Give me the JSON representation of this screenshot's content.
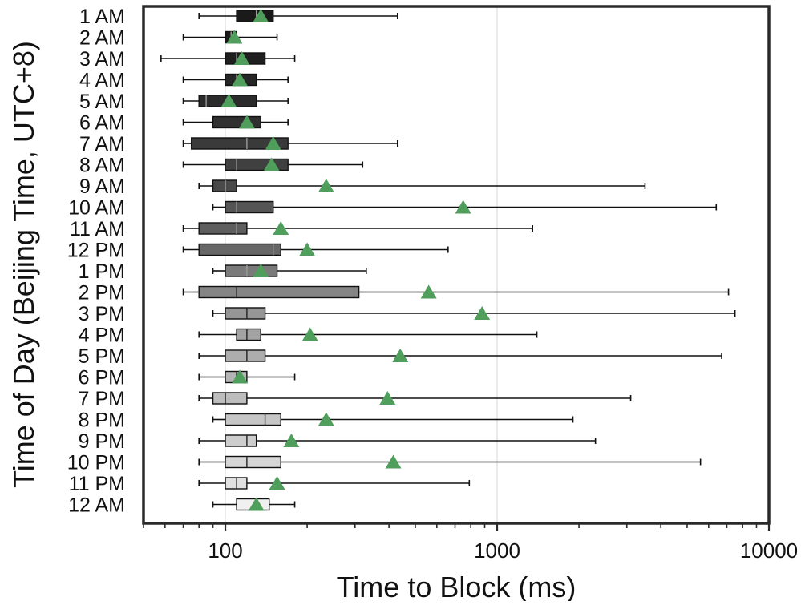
{
  "chart_data": {
    "type": "boxplot",
    "orientation": "horizontal",
    "title": "",
    "xlabel": "Time to Block (ms)",
    "ylabel": "Time of Day (Beijing Time, UTC+8)",
    "xscale": "log",
    "xlim": [
      50,
      10000
    ],
    "x_ticks": [
      100,
      1000,
      10000
    ],
    "x_tick_labels": [
      "100",
      "1000",
      "10000"
    ],
    "grid": "vertical major gridlines at 1000",
    "mean_marker": "green-triangle",
    "categories": [
      "1 AM",
      "2 AM",
      "3 AM",
      "4 AM",
      "5 AM",
      "6 AM",
      "7 AM",
      "8 AM",
      "9 AM",
      "10 AM",
      "11 AM",
      "12 PM",
      "1 PM",
      "2 PM",
      "3 PM",
      "4 PM",
      "5 PM",
      "6 PM",
      "7 PM",
      "8 PM",
      "9 PM",
      "10 PM",
      "11 PM",
      "12 AM"
    ],
    "series": [
      {
        "label": "1 AM",
        "whisker_low": 80,
        "q1": 110,
        "median": 130,
        "q3": 150,
        "whisker_high": 430,
        "mean": 135,
        "color": "#1a1a1a"
      },
      {
        "label": "2 AM",
        "whisker_low": 70,
        "q1": 100,
        "median": 105,
        "q3": 110,
        "whisker_high": 155,
        "mean": 108,
        "color": "#1a1a1a"
      },
      {
        "label": "3 AM",
        "whisker_low": 58,
        "q1": 100,
        "median": 110,
        "q3": 140,
        "whisker_high": 180,
        "mean": 115,
        "color": "#1f1f1f"
      },
      {
        "label": "4 AM",
        "whisker_low": 70,
        "q1": 100,
        "median": 110,
        "q3": 130,
        "whisker_high": 170,
        "mean": 113,
        "color": "#262626"
      },
      {
        "label": "5 AM",
        "whisker_low": 70,
        "q1": 80,
        "median": 85,
        "q3": 130,
        "whisker_high": 170,
        "mean": 103,
        "color": "#2b2b2b"
      },
      {
        "label": "6 AM",
        "whisker_low": 70,
        "q1": 90,
        "median": 120,
        "q3": 135,
        "whisker_high": 170,
        "mean": 120,
        "color": "#303030"
      },
      {
        "label": "7 AM",
        "whisker_low": 70,
        "q1": 75,
        "median": 120,
        "q3": 170,
        "whisker_high": 430,
        "mean": 150,
        "color": "#3a3a3a"
      },
      {
        "label": "8 AM",
        "whisker_low": 70,
        "q1": 100,
        "median": 110,
        "q3": 170,
        "whisker_high": 320,
        "mean": 148,
        "color": "#404040"
      },
      {
        "label": "9 AM",
        "whisker_low": 80,
        "q1": 90,
        "median": 100,
        "q3": 110,
        "whisker_high": 3500,
        "mean": 235,
        "color": "#4a4a4a"
      },
      {
        "label": "10 AM",
        "whisker_low": 90,
        "q1": 100,
        "median": 110,
        "q3": 150,
        "whisker_high": 6400,
        "mean": 750,
        "color": "#555555"
      },
      {
        "label": "11 AM",
        "whisker_low": 70,
        "q1": 80,
        "median": 110,
        "q3": 120,
        "whisker_high": 1350,
        "mean": 160,
        "color": "#5e5e5e"
      },
      {
        "label": "12 PM",
        "whisker_low": 70,
        "q1": 80,
        "median": 150,
        "q3": 160,
        "whisker_high": 660,
        "mean": 200,
        "color": "#676767"
      },
      {
        "label": "1 PM",
        "whisker_low": 90,
        "q1": 100,
        "median": 120,
        "q3": 155,
        "whisker_high": 330,
        "mean": 135,
        "color": "#7a7a7a"
      },
      {
        "label": "2 PM",
        "whisker_low": 70,
        "q1": 80,
        "median": 110,
        "q3": 310,
        "whisker_high": 7100,
        "mean": 560,
        "color": "#858585"
      },
      {
        "label": "3 PM",
        "whisker_low": 90,
        "q1": 100,
        "median": 120,
        "q3": 140,
        "whisker_high": 7500,
        "mean": 880,
        "color": "#969696"
      },
      {
        "label": "4 PM",
        "whisker_low": 80,
        "q1": 110,
        "median": 120,
        "q3": 135,
        "whisker_high": 1400,
        "mean": 205,
        "color": "#a3a3a3"
      },
      {
        "label": "5 PM",
        "whisker_low": 80,
        "q1": 100,
        "median": 120,
        "q3": 140,
        "whisker_high": 6700,
        "mean": 440,
        "color": "#adadad"
      },
      {
        "label": "6 PM",
        "whisker_low": 80,
        "q1": 100,
        "median": 110,
        "q3": 120,
        "whisker_high": 180,
        "mean": 113,
        "color": "#b5b5b5"
      },
      {
        "label": "7 PM",
        "whisker_low": 80,
        "q1": 90,
        "median": 100,
        "q3": 120,
        "whisker_high": 3100,
        "mean": 395,
        "color": "#bdbdbd"
      },
      {
        "label": "8 PM",
        "whisker_low": 90,
        "q1": 100,
        "median": 140,
        "q3": 160,
        "whisker_high": 1900,
        "mean": 235,
        "color": "#c6c6c6"
      },
      {
        "label": "9 PM",
        "whisker_low": 80,
        "q1": 100,
        "median": 120,
        "q3": 130,
        "whisker_high": 2300,
        "mean": 175,
        "color": "#cdcdcd"
      },
      {
        "label": "10 PM",
        "whisker_low": 80,
        "q1": 100,
        "median": 120,
        "q3": 160,
        "whisker_high": 5600,
        "mean": 415,
        "color": "#d6d6d6"
      },
      {
        "label": "11 PM",
        "whisker_low": 80,
        "q1": 100,
        "median": 110,
        "q3": 120,
        "whisker_high": 790,
        "mean": 155,
        "color": "#e0e0e0"
      },
      {
        "label": "12 AM",
        "whisker_low": 90,
        "q1": 110,
        "median": 130,
        "q3": 145,
        "whisker_high": 180,
        "mean": 130,
        "color": "#f0f0f0"
      }
    ],
    "colors": {
      "mean_marker": "#4f9e5c",
      "axes": "#2a2a2a",
      "whisker": "#111111",
      "gridline": "#e4e4e4"
    }
  }
}
